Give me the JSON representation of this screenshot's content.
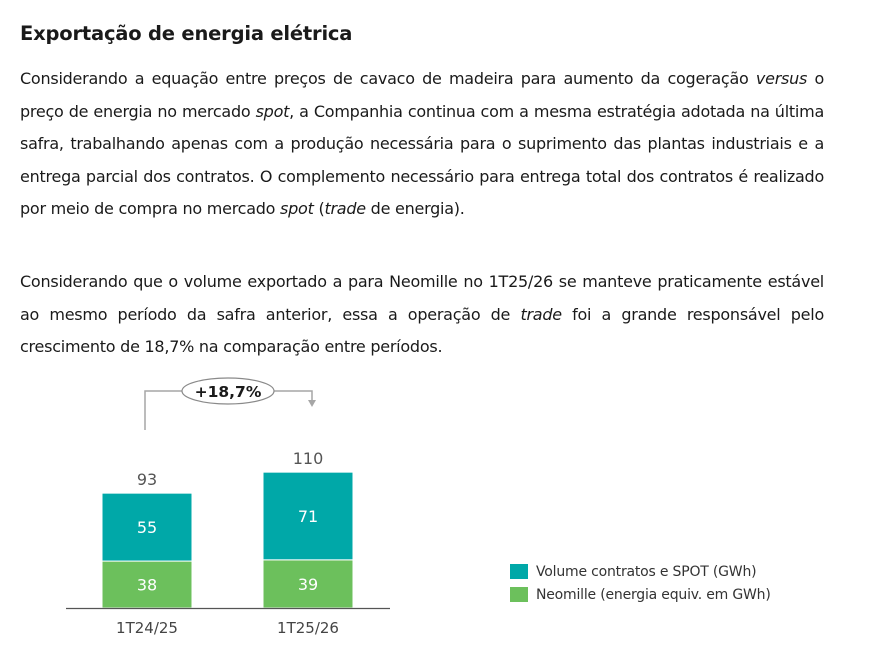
{
  "title": "Exportação de energia elétrica",
  "paragraph1": {
    "s1": "Considerando a equação entre preços de cavaco de madeira para aumento da cogeração ",
    "i1": "versus",
    "s2": " o preço de energia no mercado ",
    "i2": "spot",
    "s3": ", a Companhia continua com a mesma estratégia adotada na última safra, trabalhando apenas com a produção necessária para o suprimento das plantas industriais e a entrega parcial dos contratos. O complemento necessário para entrega total dos contratos é realizado por meio de compra no mercado ",
    "i3": "spot",
    "s4": " (",
    "i4": "trade",
    "s5": " de energia)."
  },
  "paragraph2": {
    "s1": "Considerando que o volume exportado a para Neomille no 1T25/26 se manteve praticamente estável ao mesmo período da safra anterior, essa a operação de ",
    "i1": "trade",
    "s2": " foi a grande responsável pelo crescimento de 18,7% na comparação entre períodos."
  },
  "chart_data": {
    "type": "bar",
    "stacked": true,
    "categories": [
      "1T24/25",
      "1T25/26"
    ],
    "series": [
      {
        "name": "Neomille (energia equiv. em GWh)",
        "values": [
          38,
          39
        ],
        "color": "#6cc05c"
      },
      {
        "name": "Volume contratos e SPOT (GWh)",
        "values": [
          55,
          71
        ],
        "color": "#00a8a8"
      }
    ],
    "totals": [
      "93",
      "110"
    ],
    "growth_label": "+18,7%",
    "legend_position": "right"
  }
}
